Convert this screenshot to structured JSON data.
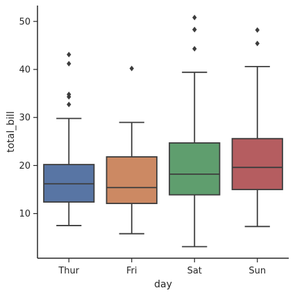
{
  "chart_data": {
    "type": "box",
    "title": "",
    "xlabel": "day",
    "ylabel": "total_bill",
    "categories": [
      "Thur",
      "Fri",
      "Sat",
      "Sun"
    ],
    "colors": [
      "#5875a4",
      "#cc8963",
      "#5f9e6e",
      "#b55d60"
    ],
    "line_color": "#3d3d3d",
    "ylim": [
      0.7,
      53.3
    ],
    "yticks": [
      10,
      20,
      30,
      40,
      50
    ],
    "grid": false,
    "boxes": [
      {
        "name": "Thur",
        "whislo": 7.5,
        "q1": 12.4,
        "median": 16.2,
        "q3": 20.2,
        "whishi": 29.8,
        "fliers": [
          32.7,
          34.3,
          34.8,
          41.2,
          43.1
        ]
      },
      {
        "name": "Fri",
        "whislo": 5.8,
        "q1": 12.1,
        "median": 15.4,
        "q3": 21.8,
        "whishi": 28.97,
        "fliers": [
          40.2
        ]
      },
      {
        "name": "Sat",
        "whislo": 3.1,
        "q1": 13.9,
        "median": 18.2,
        "q3": 24.7,
        "whishi": 39.4,
        "fliers": [
          44.3,
          48.3,
          48.3,
          50.8
        ]
      },
      {
        "name": "Sun",
        "whislo": 7.3,
        "q1": 15.0,
        "median": 19.6,
        "q3": 25.6,
        "whishi": 40.6,
        "fliers": [
          45.4,
          48.2
        ]
      }
    ]
  }
}
